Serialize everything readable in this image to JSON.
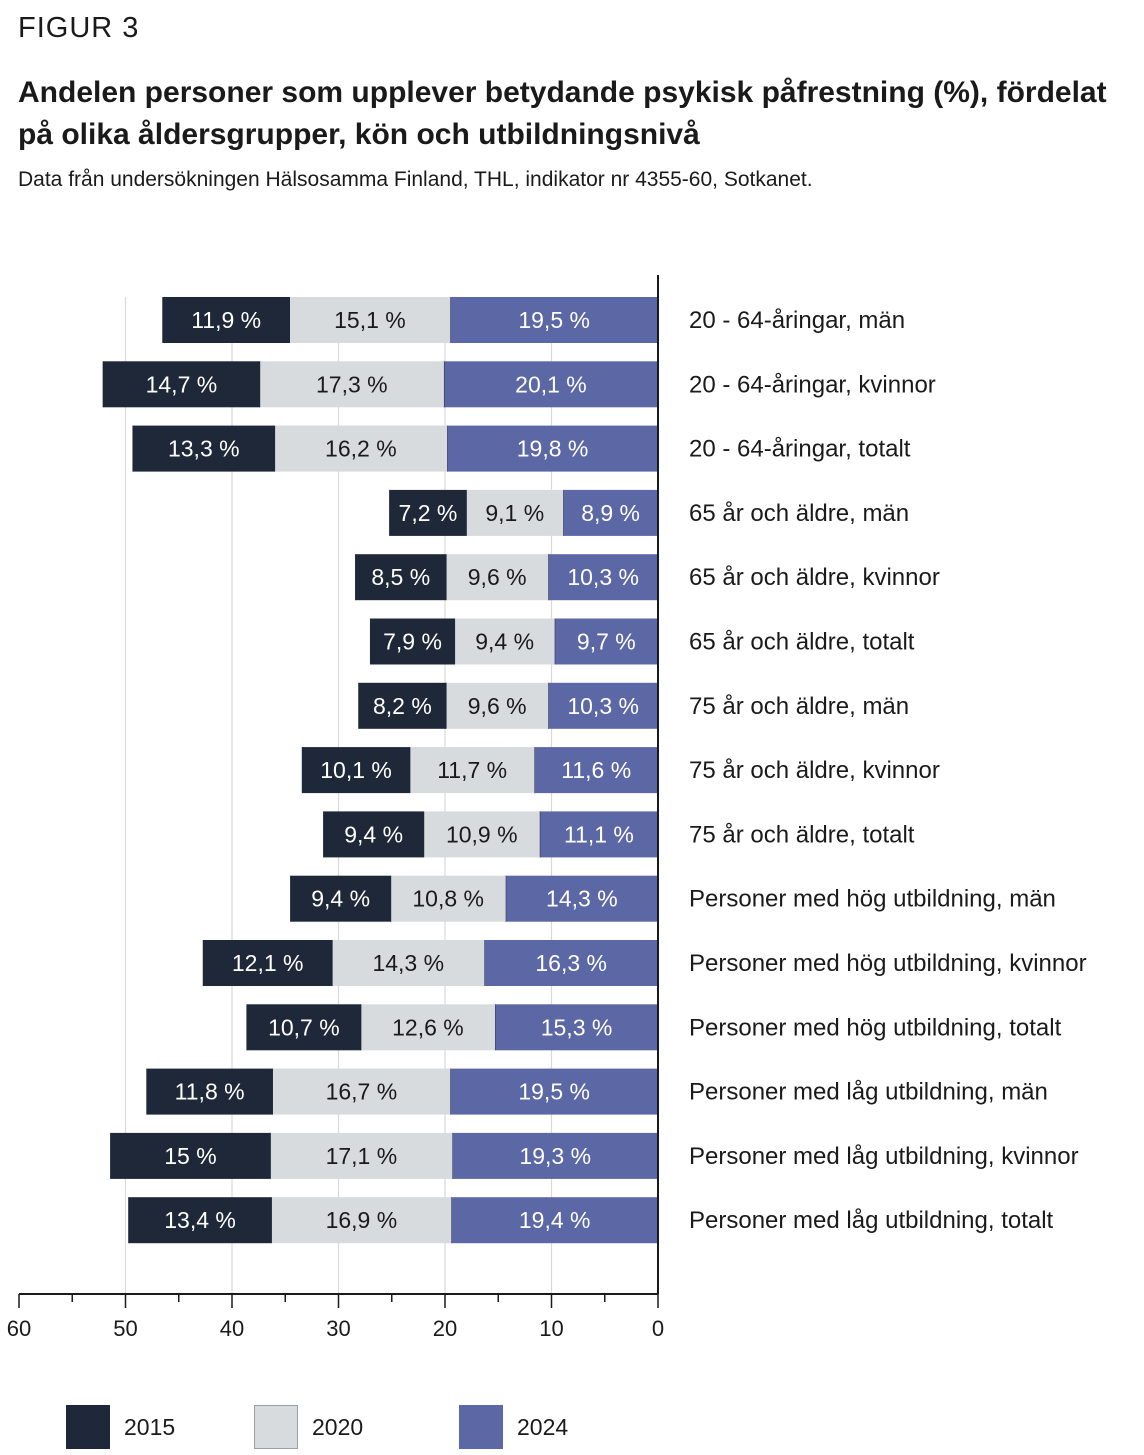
{
  "figure_label": "FIGUR 3",
  "title": "Andelen personer som upplever betydande psykisk påfrestning (%), fördelat på olika åldersgrupper, kön och utbildningsnivå",
  "subtitle": "Data från undersökningen Hälsosamma Finland, THL, indikator nr 4355-60, Sotkanet.",
  "colors": {
    "2015": "#1e2838",
    "2020": "#d7dbde",
    "2024": "#5c67a6"
  },
  "chart_data": {
    "type": "bar",
    "orientation": "horizontal-stacked",
    "x_direction": "reversed",
    "xlim": [
      0,
      60
    ],
    "x_ticks": [
      60,
      50,
      40,
      30,
      20,
      10,
      0
    ],
    "grid": true,
    "legend_position": "bottom",
    "value_suffix": " %",
    "categories": [
      "20 - 64-åringar, män",
      "20 - 64-åringar, kvinnor",
      "20 - 64-åringar, totalt",
      "65 år och äldre, män",
      "65 år och äldre, kvinnor",
      "65 år och äldre, totalt",
      "75 år och äldre, män",
      "75 år och äldre, kvinnor",
      "75 år och äldre, totalt",
      "Personer med hög utbildning, män",
      "Personer med hög utbildning, kvinnor",
      "Personer med hög utbildning, totalt",
      "Personer med låg utbildning, män",
      "Personer med låg utbildning, kvinnor",
      "Personer med låg utbildning, totalt"
    ],
    "series": [
      {
        "name": "2024",
        "values": [
          19.5,
          20.1,
          19.8,
          8.9,
          10.3,
          9.7,
          10.3,
          11.6,
          11.1,
          14.3,
          16.3,
          15.3,
          19.5,
          19.3,
          19.4
        ],
        "labels": [
          "19,5 %",
          "20,1 %",
          "19,8 %",
          "8,9 %",
          "10,3 %",
          "9,7 %",
          "10,3 %",
          "11,6 %",
          "11,1 %",
          "14,3 %",
          "16,3 %",
          "15,3 %",
          "19,5 %",
          "19,3 %",
          "19,4 %"
        ]
      },
      {
        "name": "2020",
        "values": [
          15.1,
          17.3,
          16.2,
          9.1,
          9.6,
          9.4,
          9.6,
          11.7,
          10.9,
          10.8,
          14.3,
          12.6,
          16.7,
          17.1,
          16.9
        ],
        "labels": [
          "15,1 %",
          "17,3 %",
          "16,2 %",
          "9,1 %",
          "9,6 %",
          "9,4 %",
          "9,6 %",
          "11,7 %",
          "10,9 %",
          "10,8 %",
          "14,3 %",
          "12,6 %",
          "16,7 %",
          "17,1 %",
          "16,9 %"
        ]
      },
      {
        "name": "2015",
        "values": [
          11.9,
          14.7,
          13.3,
          7.2,
          8.5,
          7.9,
          8.2,
          10.1,
          9.4,
          9.4,
          12.1,
          10.7,
          11.8,
          15,
          13.4
        ],
        "labels": [
          "11,9 %",
          "14,7 %",
          "13,3 %",
          "7,2 %",
          "8,5 %",
          "7,9 %",
          "8,2 %",
          "10,1 %",
          "9,4 %",
          "9,4 %",
          "12,1 %",
          "10,7 %",
          "11,8 %",
          "15 %",
          "13,4 %"
        ]
      }
    ]
  },
  "legend": [
    {
      "label": "2015"
    },
    {
      "label": "2020"
    },
    {
      "label": "2024"
    }
  ]
}
